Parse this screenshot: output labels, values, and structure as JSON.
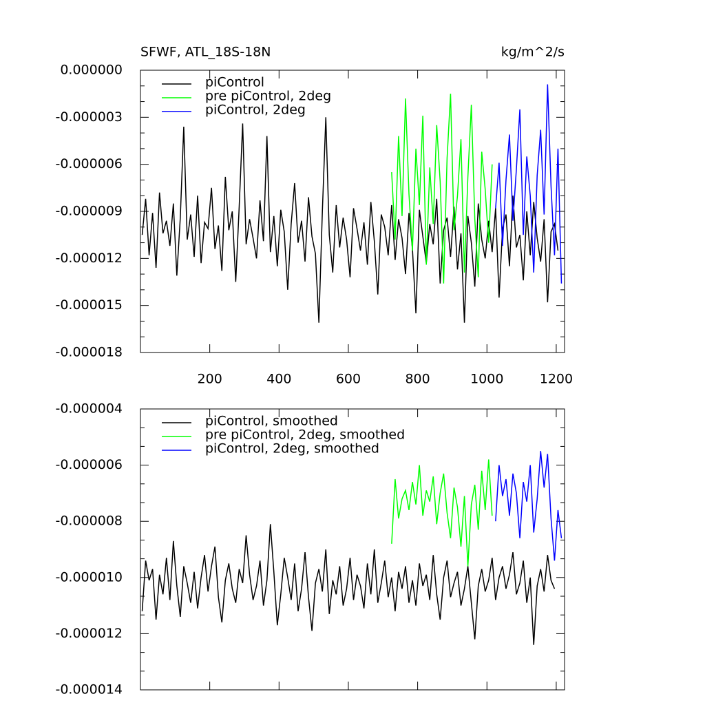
{
  "chart_data": [
    {
      "type": "line",
      "title": "SFWF, ATL_18S-18N",
      "units": "kg/m^2/s",
      "xlim": [
        0,
        1224
      ],
      "xticks": [
        200,
        400,
        600,
        800,
        1000,
        1200
      ],
      "ylim": [
        -1.8e-05,
        0
      ],
      "yticks": [
        {
          "value": 0,
          "label": "0.000000"
        },
        {
          "value": -3e-06,
          "label": "-0.000003"
        },
        {
          "value": -6e-06,
          "label": "-0.000006"
        },
        {
          "value": -9e-06,
          "label": "-0.000009"
        },
        {
          "value": -1.2e-05,
          "label": "-0.000012"
        },
        {
          "value": -1.5e-05,
          "label": "-0.000015"
        },
        {
          "value": -1.8e-05,
          "label": "-0.000018"
        }
      ],
      "series": [
        {
          "name": "piControl",
          "color": "#000000",
          "x": [
            5,
            15,
            25,
            35,
            45,
            55,
            65,
            75,
            85,
            95,
            105,
            115,
            125,
            135,
            145,
            155,
            165,
            175,
            185,
            195,
            205,
            215,
            225,
            235,
            245,
            255,
            265,
            275,
            285,
            295,
            305,
            315,
            325,
            335,
            345,
            355,
            365,
            375,
            385,
            395,
            405,
            415,
            425,
            435,
            445,
            455,
            465,
            475,
            485,
            495,
            505,
            515,
            525,
            535,
            545,
            555,
            565,
            575,
            585,
            595,
            605,
            615,
            625,
            635,
            645,
            655,
            665,
            675,
            685,
            695,
            705,
            715,
            725,
            735,
            745,
            755,
            765,
            775,
            785,
            795,
            805,
            815,
            825,
            835,
            845,
            855,
            865,
            875,
            885,
            895,
            905,
            915,
            925,
            935,
            945,
            955,
            965,
            975,
            985,
            995,
            1005,
            1015,
            1025,
            1035,
            1045,
            1055,
            1065,
            1075,
            1085,
            1095,
            1105,
            1115,
            1125,
            1135,
            1145,
            1155,
            1165,
            1175,
            1185,
            1195,
            1205
          ],
          "values": [
            -1.05e-05,
            -8.2e-06,
            -1.18e-05,
            -9.1e-06,
            -1.26e-05,
            -7.8e-06,
            -1.04e-05,
            -9.6e-06,
            -1.12e-05,
            -8.5e-06,
            -1.31e-05,
            -9.4e-06,
            -3.6e-06,
            -1.08e-05,
            -9.2e-06,
            -1.19e-05,
            -8e-06,
            -1.23e-05,
            -9.7e-06,
            -1.01e-05,
            -7.5e-06,
            -1.14e-05,
            -9.9e-06,
            -1.28e-05,
            -6.8e-06,
            -1.02e-05,
            -9e-06,
            -1.35e-05,
            -8.7e-06,
            -3.4e-06,
            -1.11e-05,
            -9.5e-06,
            -1.07e-05,
            -1.2e-05,
            -8.3e-06,
            -1.09e-05,
            -4.2e-06,
            -1.16e-05,
            -9.3e-06,
            -1.25e-05,
            -8.9e-06,
            -1.03e-05,
            -1.4e-05,
            -9.8e-06,
            -7.2e-06,
            -1.1e-05,
            -9.6e-06,
            -1.22e-05,
            -8.1e-06,
            -1.06e-05,
            -1.17e-05,
            -1.61e-05,
            -9e-06,
            -3e-06,
            -1.05e-05,
            -1.29e-05,
            -8.6e-06,
            -1.13e-05,
            -9.4e-06,
            -1.08e-05,
            -1.32e-05,
            -8.8e-06,
            -1.01e-05,
            -1.15e-05,
            -9.7e-06,
            -1.24e-05,
            -8.4e-06,
            -1.09e-05,
            -1.43e-05,
            -9.2e-06,
            -1e-05,
            -1.18e-05,
            -8.6e-06,
            -1.21e-05,
            -9.5e-06,
            -1.07e-05,
            -1.3e-05,
            -9.1e-06,
            -1.14e-05,
            -1.55e-05,
            -8.9e-06,
            -1.06e-05,
            -1.23e-05,
            -9.8e-06,
            -1.11e-05,
            -8.2e-06,
            -1.36e-05,
            -1.02e-05,
            -9.4e-06,
            -1.19e-05,
            -8.7e-06,
            -1.27e-05,
            -1.04e-05,
            -1.61e-05,
            -9.3e-06,
            -1.1e-05,
            -1.38e-05,
            -8.5e-06,
            -1.08e-05,
            -1.2e-05,
            -9.6e-06,
            -1.16e-05,
            -8.8e-06,
            -1.45e-05,
            -1.01e-05,
            -9.2e-06,
            -1.25e-05,
            -8e-06,
            -1.13e-05,
            -1.05e-05,
            -1.34e-05,
            -9e-06,
            -1.18e-05,
            -8.4e-06,
            -1.07e-05,
            -1.22e-05,
            -9.5e-06,
            -1.48e-05,
            -1.03e-05,
            -9.8e-06,
            -1.15e-05
          ]
        },
        {
          "name": "pre piControl, 2deg",
          "color": "#00ff00",
          "x": [
            725,
            735,
            745,
            755,
            765,
            775,
            785,
            795,
            805,
            815,
            825,
            835,
            845,
            855,
            865,
            875,
            885,
            895,
            905,
            915,
            925,
            935,
            945,
            955,
            965,
            975,
            985,
            995,
            1005,
            1015
          ],
          "values": [
            -6.5e-06,
            -1.08e-05,
            -4.2e-06,
            -9.3e-06,
            -1.8e-06,
            -7.9e-06,
            -1.15e-05,
            -5e-06,
            -8.6e-06,
            -2.9e-06,
            -1.24e-05,
            -6.2e-06,
            -9.8e-06,
            -3.5e-06,
            -7.1e-06,
            -1.36e-05,
            -5.6e-06,
            -1.5e-06,
            -1.02e-05,
            -8e-06,
            -4.4e-06,
            -1.29e-05,
            -6.8e-06,
            -2.2e-06,
            -9.5e-06,
            -1.32e-05,
            -5.2e-06,
            -7.6e-06,
            -1.1e-05,
            -6e-06
          ]
        },
        {
          "name": "piControl, 2deg",
          "color": "#0000ff",
          "x": [
            1025,
            1035,
            1045,
            1055,
            1065,
            1075,
            1085,
            1095,
            1105,
            1115,
            1125,
            1135,
            1145,
            1155,
            1165,
            1175,
            1185,
            1195,
            1205,
            1215
          ],
          "values": [
            -8.8e-06,
            -5.9e-06,
            -1.12e-05,
            -7e-06,
            -4.1e-06,
            -9.6e-06,
            -6.3e-06,
            -2.5e-06,
            -1.05e-05,
            -5.5e-06,
            -8e-06,
            -1.29e-05,
            -6.7e-06,
            -3.8e-06,
            -9.2e-06,
            -9e-07,
            -7.4e-06,
            -1.18e-05,
            -5e-06,
            -1.36e-05
          ]
        }
      ]
    },
    {
      "type": "line",
      "xlim": [
        0,
        1224
      ],
      "xticks": [
        200,
        400,
        600,
        800,
        1000,
        1200
      ],
      "ylim": [
        -1.4e-05,
        -4e-06
      ],
      "yticks": [
        {
          "value": -4e-06,
          "label": "-0.000004"
        },
        {
          "value": -6e-06,
          "label": "-0.000006"
        },
        {
          "value": -8e-06,
          "label": "-0.000008"
        },
        {
          "value": -1e-05,
          "label": "-0.000010"
        },
        {
          "value": -1.2e-05,
          "label": "-0.000012"
        },
        {
          "value": -1.4e-05,
          "label": "-0.000014"
        }
      ],
      "series": [
        {
          "name": "piControl, smoothed",
          "color": "#000000",
          "x": [
            5,
            15,
            25,
            35,
            45,
            55,
            65,
            75,
            85,
            95,
            105,
            115,
            125,
            135,
            145,
            155,
            165,
            175,
            185,
            195,
            205,
            215,
            225,
            235,
            245,
            255,
            265,
            275,
            285,
            295,
            305,
            315,
            325,
            335,
            345,
            355,
            365,
            375,
            385,
            395,
            405,
            415,
            425,
            435,
            445,
            455,
            465,
            475,
            485,
            495,
            505,
            515,
            525,
            535,
            545,
            555,
            565,
            575,
            585,
            595,
            605,
            615,
            625,
            635,
            645,
            655,
            665,
            675,
            685,
            695,
            705,
            715,
            725,
            735,
            745,
            755,
            765,
            775,
            785,
            795,
            805,
            815,
            825,
            835,
            845,
            855,
            865,
            875,
            885,
            895,
            905,
            915,
            925,
            935,
            945,
            955,
            965,
            975,
            985,
            995,
            1005,
            1015,
            1025,
            1035,
            1045,
            1055,
            1065,
            1075,
            1085,
            1095,
            1105,
            1115,
            1125,
            1135,
            1145,
            1155,
            1165,
            1175,
            1185,
            1195
          ],
          "values": [
            -1.12e-05,
            -9.4e-06,
            -1.01e-05,
            -9.7e-06,
            -1.15e-05,
            -9.9e-06,
            -1.06e-05,
            -9.3e-06,
            -1.08e-05,
            -8.7e-06,
            -1.03e-05,
            -1.14e-05,
            -9.6e-06,
            -1.02e-05,
            -1.09e-05,
            -9.8e-06,
            -1.11e-05,
            -1e-05,
            -9.2e-06,
            -1.05e-05,
            -9.6e-06,
            -8.9e-06,
            -1.07e-05,
            -1.16e-05,
            -1.01e-05,
            -9.5e-06,
            -1.04e-05,
            -1.09e-05,
            -9.7e-06,
            -1.02e-05,
            -8.5e-06,
            -9.9e-06,
            -1.08e-05,
            -1.03e-05,
            -9.4e-06,
            -1.1e-05,
            -1.01e-05,
            -8.1e-06,
            -9.8e-06,
            -1.17e-05,
            -1.06e-05,
            -9.3e-06,
            -1e-05,
            -1.08e-05,
            -9.5e-06,
            -1.12e-05,
            -1.04e-05,
            -9.1e-06,
            -1.07e-05,
            -1.19e-05,
            -1.02e-05,
            -9.7e-06,
            -1.05e-05,
            -9e-06,
            -1.13e-05,
            -1.01e-05,
            -1.06e-05,
            -9.6e-06,
            -1.1e-05,
            -1.04e-05,
            -9.3e-06,
            -1.08e-05,
            -9.9e-06,
            -1.03e-05,
            -1.11e-05,
            -9.5e-06,
            -1.06e-05,
            -9e-06,
            -1.09e-05,
            -1.02e-05,
            -9.4e-06,
            -1.07e-05,
            -1e-05,
            -1.12e-05,
            -9.8e-06,
            -1.04e-05,
            -9.6e-06,
            -1.09e-05,
            -1.01e-05,
            -1.1e-05,
            -9.5e-06,
            -1.03e-05,
            -9.9e-06,
            -1.08e-05,
            -9.2e-06,
            -1.06e-05,
            -1.15e-05,
            -1e-05,
            -9.4e-06,
            -1.07e-05,
            -1.02e-05,
            -9.8e-06,
            -1.1e-05,
            -1.04e-05,
            -9.6e-06,
            -1.09e-05,
            -1.22e-05,
            -1.03e-05,
            -9.7e-06,
            -1.05e-05,
            -1.01e-05,
            -9.3e-06,
            -1.08e-05,
            -1e-05,
            -9.6e-06,
            -1.04e-05,
            -9.9e-06,
            -9.1e-06,
            -1.06e-05,
            -1.02e-05,
            -9.4e-06,
            -1.09e-05,
            -1e-05,
            -1.24e-05,
            -1.03e-05,
            -9.7e-06,
            -1.05e-05,
            -9.2e-06,
            -1.01e-05,
            -1.04e-05
          ]
        },
        {
          "name": "pre piControl, 2deg, smoothed",
          "color": "#00ff00",
          "x": [
            725,
            735,
            745,
            755,
            765,
            775,
            785,
            795,
            805,
            815,
            825,
            835,
            845,
            855,
            865,
            875,
            885,
            895,
            905,
            915,
            925,
            935,
            945,
            955,
            965,
            975,
            985,
            995,
            1005,
            1015
          ],
          "values": [
            -8.8e-06,
            -6.5e-06,
            -7.9e-06,
            -7.2e-06,
            -6.9e-06,
            -7.6e-06,
            -6.6e-06,
            -7.4e-06,
            -6e-06,
            -7.8e-06,
            -6.9e-06,
            -7.3e-06,
            -6.4e-06,
            -8.1e-06,
            -7e-06,
            -6.3e-06,
            -7.7e-06,
            -8.6e-06,
            -6.8e-06,
            -7.5e-06,
            -8.9e-06,
            -7.1e-06,
            -9.6e-06,
            -7.4e-06,
            -6.7e-06,
            -8.3e-06,
            -6.2e-06,
            -7.6e-06,
            -5.8e-06,
            -7.8e-06
          ]
        },
        {
          "name": "piControl, 2deg, smoothed",
          "color": "#0000ff",
          "x": [
            1025,
            1035,
            1045,
            1055,
            1065,
            1075,
            1085,
            1095,
            1105,
            1115,
            1125,
            1135,
            1145,
            1155,
            1165,
            1175,
            1185,
            1195,
            1205,
            1215
          ],
          "values": [
            -8e-06,
            -6e-06,
            -7.1e-06,
            -6.5e-06,
            -7.8e-06,
            -6.3e-06,
            -7e-06,
            -8.6e-06,
            -6.6e-06,
            -7.3e-06,
            -6e-06,
            -8.4e-06,
            -7.2e-06,
            -5.5e-06,
            -6.8e-06,
            -5.6e-06,
            -7.9e-06,
            -9.4e-06,
            -7.6e-06,
            -8.6e-06
          ]
        }
      ]
    }
  ]
}
